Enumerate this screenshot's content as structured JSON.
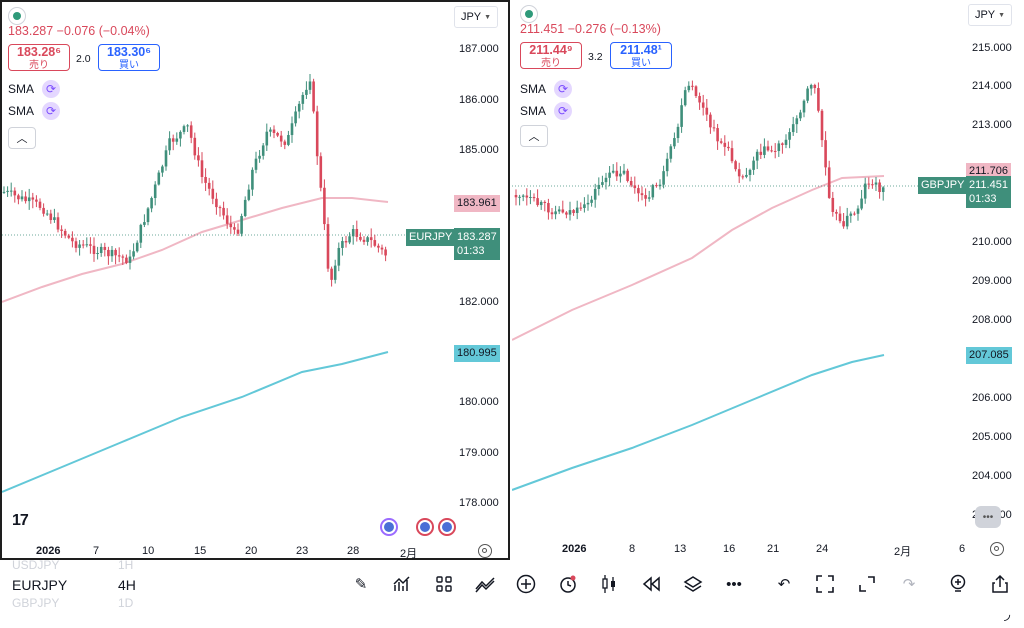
{
  "left": {
    "ohlc": "183.287  −0.076 (−0.04%)",
    "sell_price": "183.28⁶",
    "sell_label": "売り",
    "spread": "2.0",
    "buy_price": "183.30⁶",
    "buy_label": "買い",
    "indicators": [
      "SMA",
      "SMA"
    ],
    "currency": "JPY",
    "y_labels": [
      "187.000",
      "186.000",
      "185.000",
      "182.000",
      "180.000",
      "179.000",
      "178.000"
    ],
    "tag_sma_short": "183.961",
    "tag_sma_long": "180.995",
    "symbol_tag": "EURJPY",
    "last_price": "183.287",
    "countdown": "01:33",
    "x_labels": [
      "2026",
      "7",
      "10",
      "15",
      "20",
      "23",
      "28",
      "2月"
    ],
    "logo": "17"
  },
  "right": {
    "ohlc": "211.451  −0.276 (−0.13%)",
    "sell_price": "211.44⁹",
    "sell_label": "売り",
    "spread": "3.2",
    "buy_price": "211.48¹",
    "buy_label": "買い",
    "indicators": [
      "SMA",
      "SMA"
    ],
    "currency": "JPY",
    "y_labels": [
      "215.000",
      "214.000",
      "213.000",
      "210.000",
      "209.000",
      "208.000",
      "206.000",
      "205.000",
      "204.000",
      "203.000"
    ],
    "tag_sma_short": "211.706",
    "tag_sma_long": "207.085",
    "symbol_tag": "GBPJPY",
    "last_price": "211.451",
    "countdown": "01:33",
    "x_labels": [
      "2026",
      "8",
      "13",
      "16",
      "21",
      "24",
      "2月",
      "6"
    ]
  },
  "bottom": {
    "symbol_prev": "USDJPY",
    "symbol": "EURJPY",
    "symbol_next": "GBPJPY",
    "interval_prev": "1H",
    "interval": "4H",
    "interval_next": "1D"
  },
  "colors": {
    "up": "#3f8f7b",
    "down": "#d9485b",
    "sma_short": "#f0b7c4",
    "sma_long": "#63c8d8"
  },
  "icons": [
    "draw-icon",
    "indicators-icon",
    "layout-icon",
    "compare-icon",
    "add-icon",
    "alert-icon",
    "bar-style-icon",
    "replay-icon",
    "layers-icon",
    "more-icon",
    "undo-icon",
    "fullscreen-icon",
    "expand-icon",
    "redo-icon",
    "ideas-icon",
    "share-icon"
  ]
}
